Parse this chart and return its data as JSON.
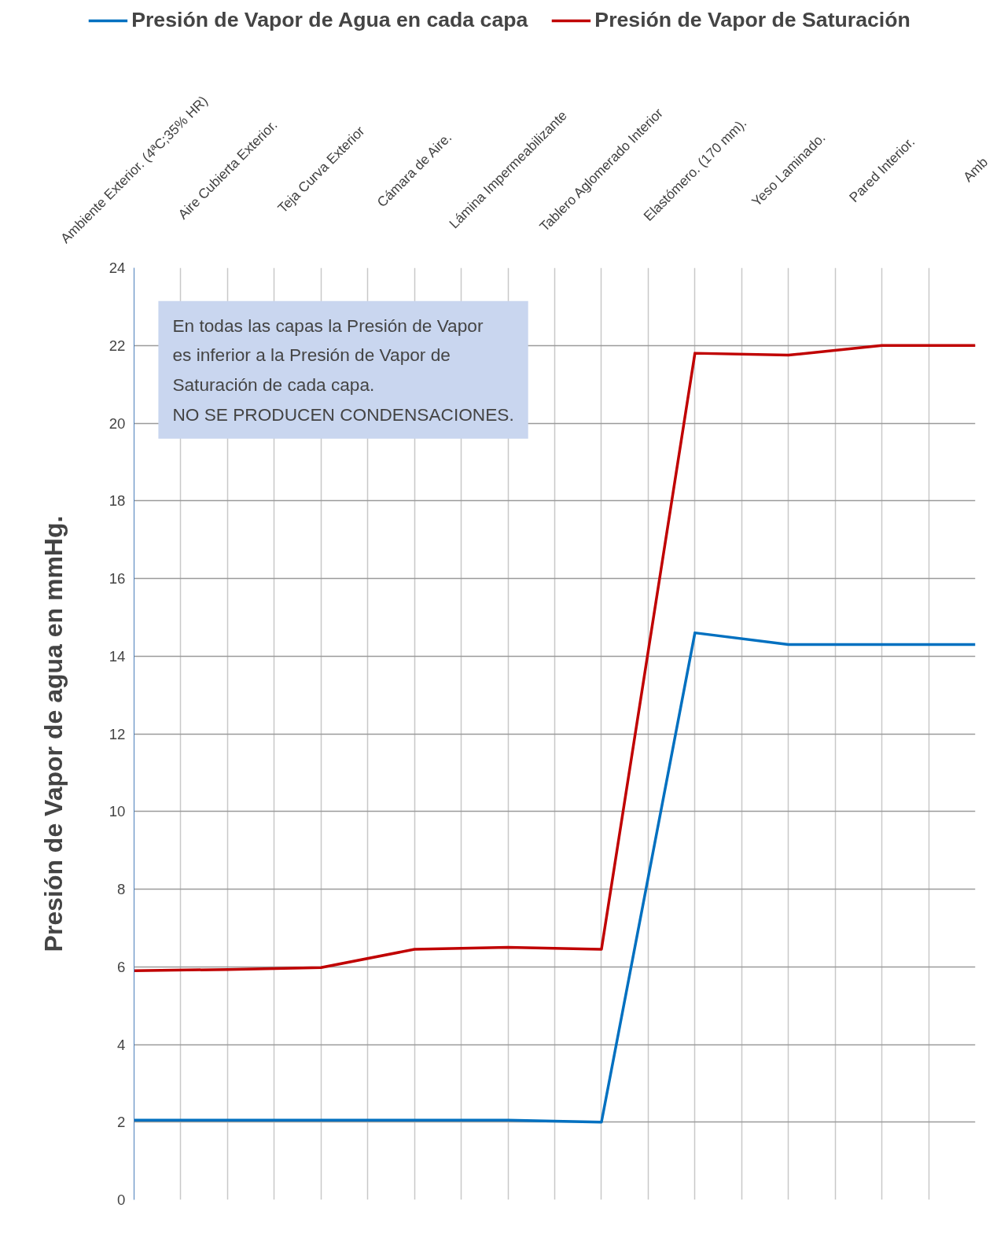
{
  "chart_data": {
    "type": "line",
    "categories": [
      "Ambiente Exterior. (4ªC;35% HR)",
      "Aire Cubierta Exterior.",
      "Teja Curva Exterior",
      "Cámara de Aire.",
      "Lámina Impermeabilizante",
      "Tablero Aglomerado Interior",
      "Elastómero. (170 mm).",
      "Yeso Laminado.",
      "Pared Interior.",
      "Amb"
    ],
    "series": [
      {
        "name": "Presión de Vapor de Agua en cada capa",
        "color": "#0070c0",
        "values": [
          2.05,
          2.05,
          2.05,
          2.05,
          2.05,
          2.0,
          14.6,
          14.3,
          14.3,
          14.3
        ]
      },
      {
        "name": "Presión de Vapor de Saturación",
        "color": "#c00000",
        "values": [
          5.9,
          5.93,
          5.98,
          6.45,
          6.5,
          6.45,
          21.8,
          21.75,
          22.0,
          22.0
        ]
      }
    ],
    "ylabel": "Presión de Vapor de agua en mmHg.",
    "ylim": [
      0,
      24
    ],
    "yticks": [
      0,
      2,
      4,
      6,
      8,
      10,
      12,
      14,
      16,
      18,
      20,
      22,
      24
    ],
    "grid": true,
    "legend": "top",
    "marker": "none",
    "line_style": "solid",
    "annotations": [
      "En todas las capas la Presión de Vapor\nes inferior a la Presión de Vapor de\nSaturación de cada capa.\nNO SE PRODUCEN CONDENSACIONES."
    ]
  }
}
